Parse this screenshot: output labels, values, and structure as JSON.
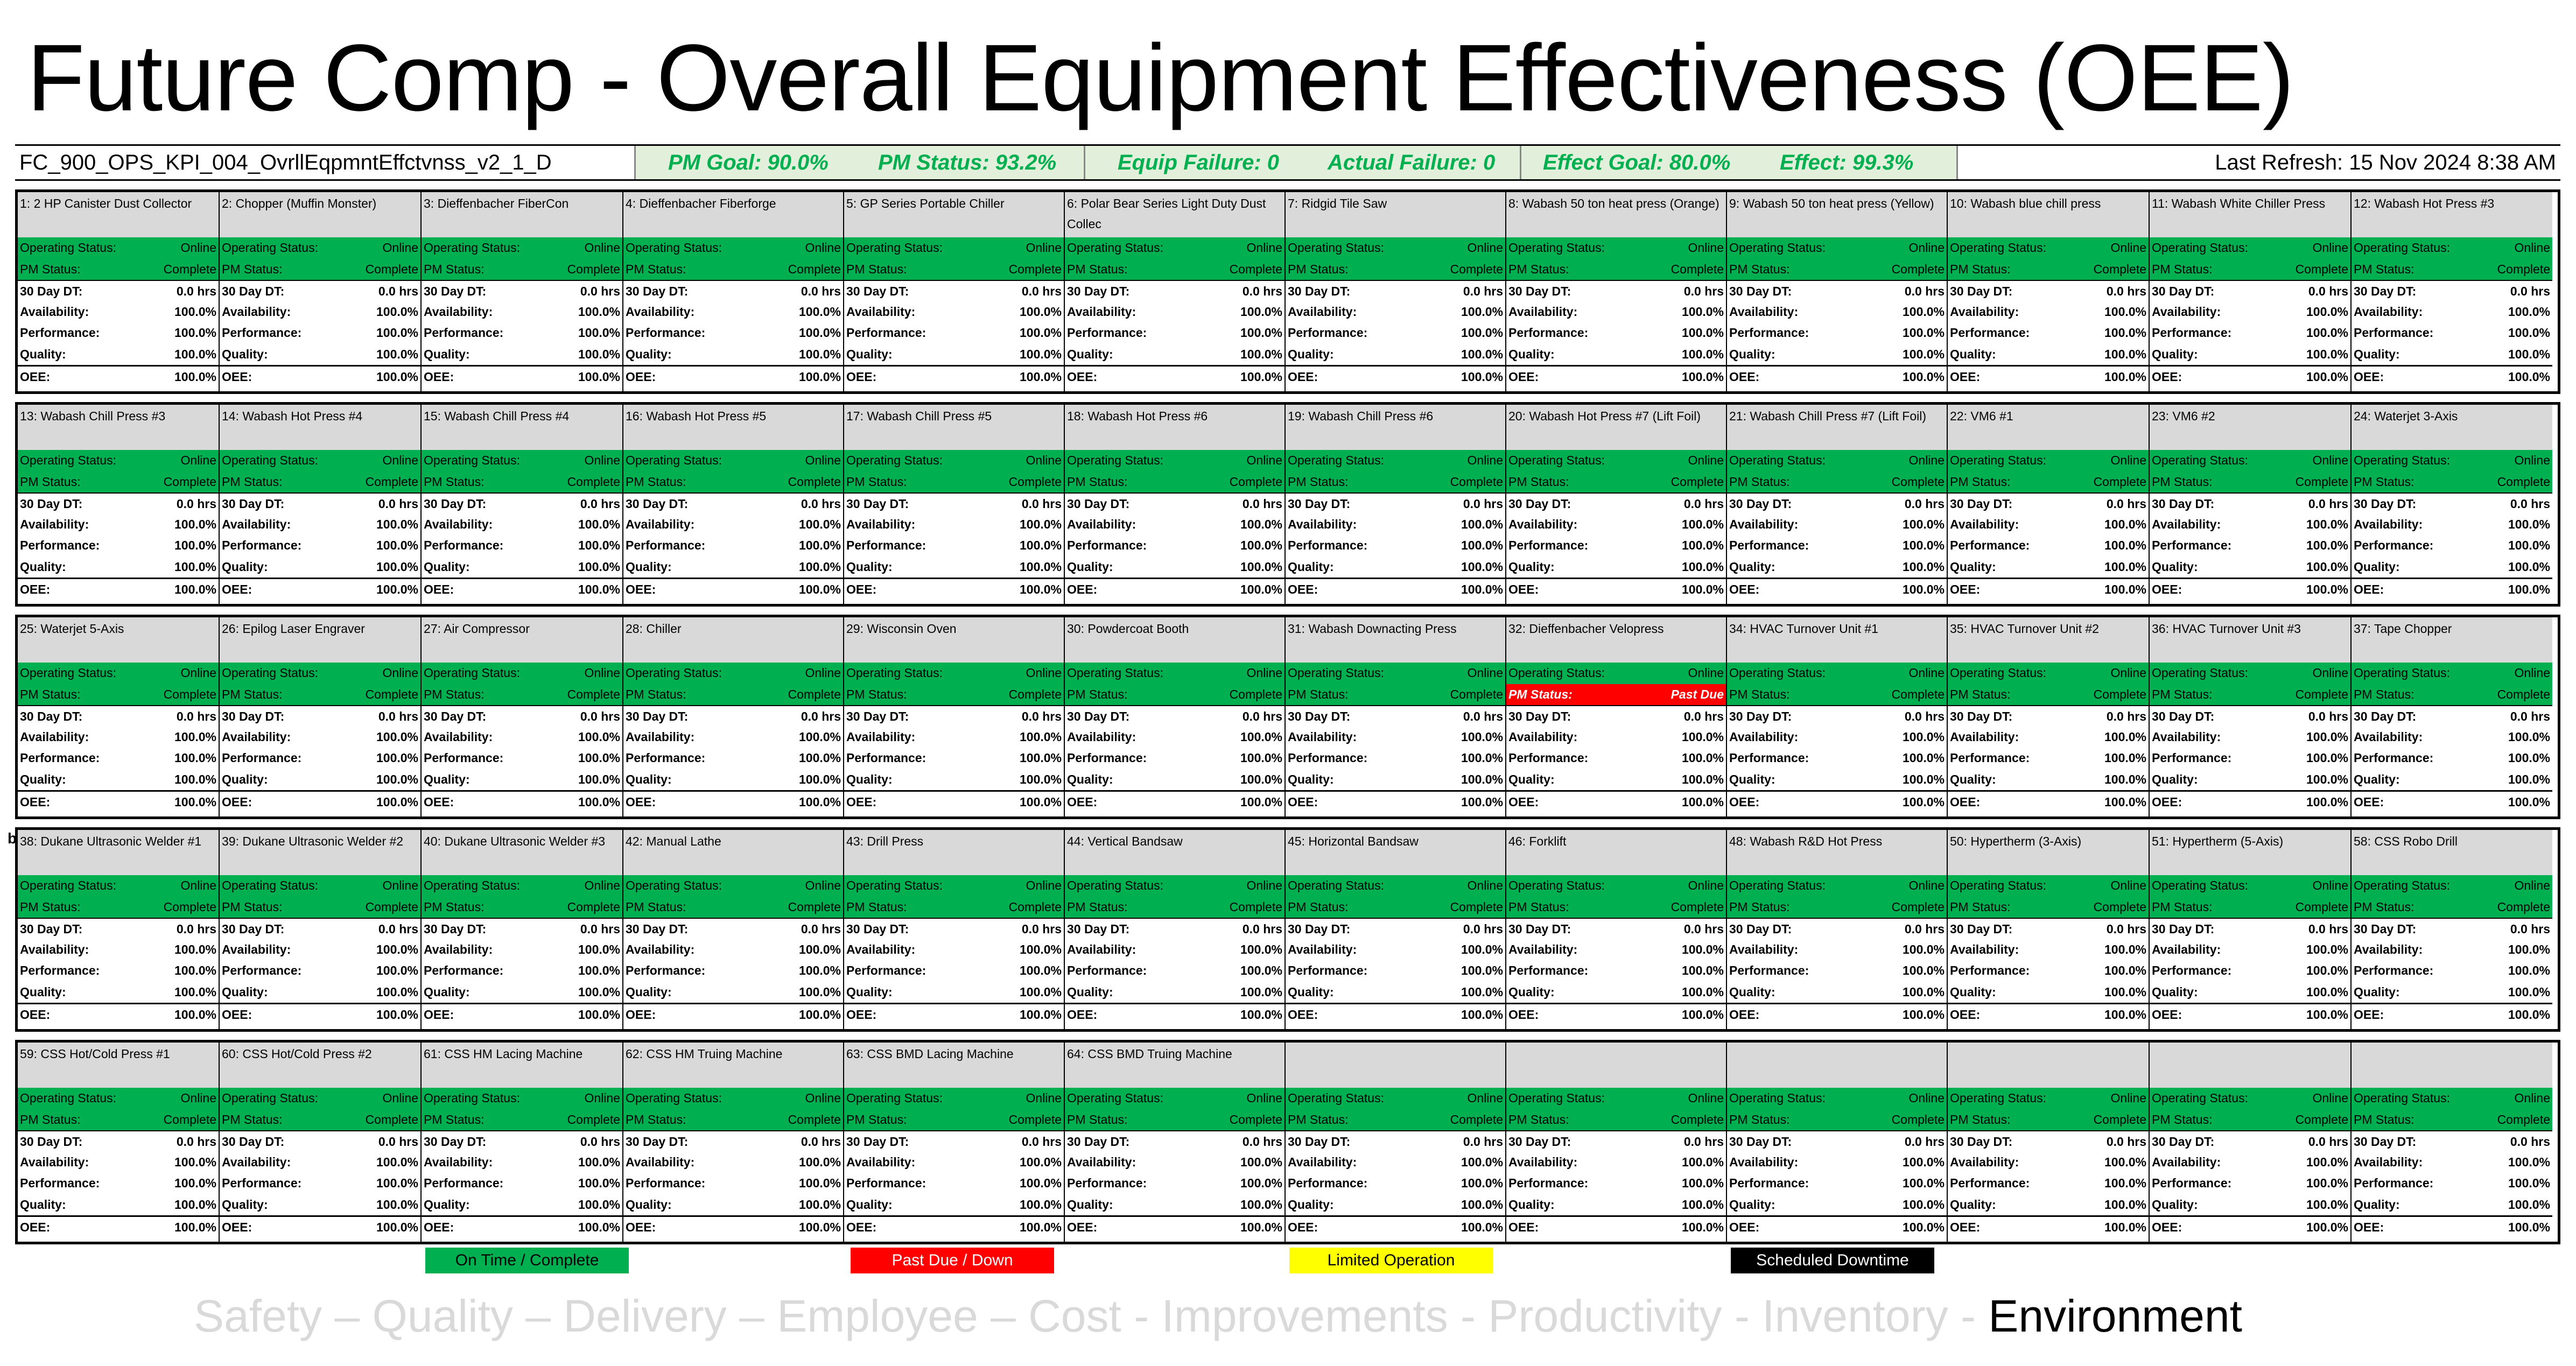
{
  "title": "Future Comp - Overall Equipment Effectiveness (OEE)",
  "header": {
    "report_id": "FC_900_OPS_KPI_004_OvrllEqpmntEffctvnss_v2_1_D",
    "pm_goal": "PM Goal: 90.0%",
    "pm_status": "PM Status: 93.2%",
    "equip_failure": "Equip Failure: 0",
    "actual_failure": "Actual Failure: 0",
    "effect_goal": "Effect Goal: 80.0%",
    "effect": "Effect: 99.3%",
    "last_refresh": "Last Refresh: 15 Nov 2024 8:38 AM"
  },
  "labels": {
    "operating_status": "Operating Status:",
    "pm_status": "PM Status:",
    "dt": "30 Day DT:",
    "availability": "Availability:",
    "performance": "Performance:",
    "quality": "Quality:",
    "oee": "OEE:"
  },
  "rows": [
    [
      {
        "name": "1: 2 HP Canister Dust Collector",
        "op": "Online",
        "pm": "Complete",
        "dt": "0.0 hrs",
        "avail": "100.0%",
        "perf": "100.0%",
        "qual": "100.0%",
        "oee": "100.0%"
      },
      {
        "name": "2: Chopper (Muffin Monster)",
        "op": "Online",
        "pm": "Complete",
        "dt": "0.0 hrs",
        "avail": "100.0%",
        "perf": "100.0%",
        "qual": "100.0%",
        "oee": "100.0%"
      },
      {
        "name": "3: Dieffenbacher FiberCon",
        "op": "Online",
        "pm": "Complete",
        "dt": "0.0 hrs",
        "avail": "100.0%",
        "perf": "100.0%",
        "qual": "100.0%",
        "oee": "100.0%"
      },
      {
        "name": "4: Dieffenbacher Fiberforge",
        "op": "Online",
        "pm": "Complete",
        "dt": "0.0 hrs",
        "avail": "100.0%",
        "perf": "100.0%",
        "qual": "100.0%",
        "oee": "100.0%"
      },
      {
        "name": "5: GP Series Portable Chiller",
        "op": "Online",
        "pm": "Complete",
        "dt": "0.0 hrs",
        "avail": "100.0%",
        "perf": "100.0%",
        "qual": "100.0%",
        "oee": "100.0%"
      },
      {
        "name": "6: Polar Bear Series Light Duty Dust Collec",
        "op": "Online",
        "pm": "Complete",
        "dt": "0.0 hrs",
        "avail": "100.0%",
        "perf": "100.0%",
        "qual": "100.0%",
        "oee": "100.0%"
      },
      {
        "name": "7: Ridgid Tile Saw",
        "op": "Online",
        "pm": "Complete",
        "dt": "0.0 hrs",
        "avail": "100.0%",
        "perf": "100.0%",
        "qual": "100.0%",
        "oee": "100.0%"
      },
      {
        "name": "8: Wabash 50 ton heat press (Orange)",
        "op": "Online",
        "pm": "Complete",
        "dt": "0.0 hrs",
        "avail": "100.0%",
        "perf": "100.0%",
        "qual": "100.0%",
        "oee": "100.0%"
      },
      {
        "name": "9: Wabash 50 ton heat press (Yellow)",
        "op": "Online",
        "pm": "Complete",
        "dt": "0.0 hrs",
        "avail": "100.0%",
        "perf": "100.0%",
        "qual": "100.0%",
        "oee": "100.0%"
      },
      {
        "name": "10: Wabash blue chill press",
        "op": "Online",
        "pm": "Complete",
        "dt": "0.0 hrs",
        "avail": "100.0%",
        "perf": "100.0%",
        "qual": "100.0%",
        "oee": "100.0%"
      },
      {
        "name": "11: Wabash White Chiller Press",
        "op": "Online",
        "pm": "Complete",
        "dt": "0.0 hrs",
        "avail": "100.0%",
        "perf": "100.0%",
        "qual": "100.0%",
        "oee": "100.0%"
      },
      {
        "name": "12: Wabash Hot Press #3",
        "op": "Online",
        "pm": "Complete",
        "dt": "0.0 hrs",
        "avail": "100.0%",
        "perf": "100.0%",
        "qual": "100.0%",
        "oee": "100.0%"
      }
    ],
    [
      {
        "name": "13: Wabash Chill Press #3",
        "op": "Online",
        "pm": "Complete",
        "dt": "0.0 hrs",
        "avail": "100.0%",
        "perf": "100.0%",
        "qual": "100.0%",
        "oee": "100.0%"
      },
      {
        "name": "14: Wabash Hot Press #4",
        "op": "Online",
        "pm": "Complete",
        "dt": "0.0 hrs",
        "avail": "100.0%",
        "perf": "100.0%",
        "qual": "100.0%",
        "oee": "100.0%"
      },
      {
        "name": "15: Wabash Chill Press #4",
        "op": "Online",
        "pm": "Complete",
        "dt": "0.0 hrs",
        "avail": "100.0%",
        "perf": "100.0%",
        "qual": "100.0%",
        "oee": "100.0%"
      },
      {
        "name": "16: Wabash Hot Press #5",
        "op": "Online",
        "pm": "Complete",
        "dt": "0.0 hrs",
        "avail": "100.0%",
        "perf": "100.0%",
        "qual": "100.0%",
        "oee": "100.0%"
      },
      {
        "name": "17: Wabash Chill Press #5",
        "op": "Online",
        "pm": "Complete",
        "dt": "0.0 hrs",
        "avail": "100.0%",
        "perf": "100.0%",
        "qual": "100.0%",
        "oee": "100.0%"
      },
      {
        "name": "18: Wabash Hot Press #6",
        "op": "Online",
        "pm": "Complete",
        "dt": "0.0 hrs",
        "avail": "100.0%",
        "perf": "100.0%",
        "qual": "100.0%",
        "oee": "100.0%"
      },
      {
        "name": "19: Wabash Chill Press #6",
        "op": "Online",
        "pm": "Complete",
        "dt": "0.0 hrs",
        "avail": "100.0%",
        "perf": "100.0%",
        "qual": "100.0%",
        "oee": "100.0%"
      },
      {
        "name": "20: Wabash Hot Press #7 (Lift Foil)",
        "op": "Online",
        "pm": "Complete",
        "dt": "0.0 hrs",
        "avail": "100.0%",
        "perf": "100.0%",
        "qual": "100.0%",
        "oee": "100.0%"
      },
      {
        "name": "21: Wabash Chill Press #7 (Lift Foil)",
        "op": "Online",
        "pm": "Complete",
        "dt": "0.0 hrs",
        "avail": "100.0%",
        "perf": "100.0%",
        "qual": "100.0%",
        "oee": "100.0%"
      },
      {
        "name": "22: VM6 #1",
        "op": "Online",
        "pm": "Complete",
        "dt": "0.0 hrs",
        "avail": "100.0%",
        "perf": "100.0%",
        "qual": "100.0%",
        "oee": "100.0%"
      },
      {
        "name": "23: VM6 #2",
        "op": "Online",
        "pm": "Complete",
        "dt": "0.0 hrs",
        "avail": "100.0%",
        "perf": "100.0%",
        "qual": "100.0%",
        "oee": "100.0%"
      },
      {
        "name": "24: Waterjet 3-Axis",
        "op": "Online",
        "pm": "Complete",
        "dt": "0.0 hrs",
        "avail": "100.0%",
        "perf": "100.0%",
        "qual": "100.0%",
        "oee": "100.0%"
      }
    ],
    [
      {
        "name": "25: Waterjet 5-Axis",
        "op": "Online",
        "pm": "Complete",
        "dt": "0.0 hrs",
        "avail": "100.0%",
        "perf": "100.0%",
        "qual": "100.0%",
        "oee": "100.0%"
      },
      {
        "name": "26: Epilog Laser Engraver",
        "op": "Online",
        "pm": "Complete",
        "dt": "0.0 hrs",
        "avail": "100.0%",
        "perf": "100.0%",
        "qual": "100.0%",
        "oee": "100.0%"
      },
      {
        "name": "27: Air Compressor",
        "op": "Online",
        "pm": "Complete",
        "dt": "0.0 hrs",
        "avail": "100.0%",
        "perf": "100.0%",
        "qual": "100.0%",
        "oee": "100.0%"
      },
      {
        "name": "28: Chiller",
        "op": "Online",
        "pm": "Complete",
        "dt": "0.0 hrs",
        "avail": "100.0%",
        "perf": "100.0%",
        "qual": "100.0%",
        "oee": "100.0%"
      },
      {
        "name": "29: Wisconsin Oven",
        "op": "Online",
        "pm": "Complete",
        "dt": "0.0 hrs",
        "avail": "100.0%",
        "perf": "100.0%",
        "qual": "100.0%",
        "oee": "100.0%"
      },
      {
        "name": "30: Powdercoat Booth",
        "op": "Online",
        "pm": "Complete",
        "dt": "0.0 hrs",
        "avail": "100.0%",
        "perf": "100.0%",
        "qual": "100.0%",
        "oee": "100.0%"
      },
      {
        "name": "31: Wabash Downacting Press",
        "op": "Online",
        "pm": "Complete",
        "dt": "0.0 hrs",
        "avail": "100.0%",
        "perf": "100.0%",
        "qual": "100.0%",
        "oee": "100.0%"
      },
      {
        "name": "32: Dieffenbacher Velopress",
        "op": "Online",
        "pm": "Past Due",
        "dt": "0.0 hrs",
        "avail": "100.0%",
        "perf": "100.0%",
        "qual": "100.0%",
        "oee": "100.0%"
      },
      {
        "name": "34: HVAC Turnover Unit #1",
        "op": "Online",
        "pm": "Complete",
        "dt": "0.0 hrs",
        "avail": "100.0%",
        "perf": "100.0%",
        "qual": "100.0%",
        "oee": "100.0%"
      },
      {
        "name": "35: HVAC Turnover Unit #2",
        "op": "Online",
        "pm": "Complete",
        "dt": "0.0 hrs",
        "avail": "100.0%",
        "perf": "100.0%",
        "qual": "100.0%",
        "oee": "100.0%"
      },
      {
        "name": "36: HVAC Turnover Unit #3",
        "op": "Online",
        "pm": "Complete",
        "dt": "0.0 hrs",
        "avail": "100.0%",
        "perf": "100.0%",
        "qual": "100.0%",
        "oee": "100.0%"
      },
      {
        "name": "37: Tape Chopper",
        "op": "Online",
        "pm": "Complete",
        "dt": "0.0 hrs",
        "avail": "100.0%",
        "perf": "100.0%",
        "qual": "100.0%",
        "oee": "100.0%"
      }
    ],
    [
      {
        "name": "38: Dukane Ultrasonic Welder #1",
        "op": "Online",
        "pm": "Complete",
        "dt": "0.0 hrs",
        "avail": "100.0%",
        "perf": "100.0%",
        "qual": "100.0%",
        "oee": "100.0%"
      },
      {
        "name": "39: Dukane Ultrasonic Welder #2",
        "op": "Online",
        "pm": "Complete",
        "dt": "0.0 hrs",
        "avail": "100.0%",
        "perf": "100.0%",
        "qual": "100.0%",
        "oee": "100.0%"
      },
      {
        "name": "40: Dukane Ultrasonic Welder #3",
        "op": "Online",
        "pm": "Complete",
        "dt": "0.0 hrs",
        "avail": "100.0%",
        "perf": "100.0%",
        "qual": "100.0%",
        "oee": "100.0%"
      },
      {
        "name": "42: Manual Lathe",
        "op": "Online",
        "pm": "Complete",
        "dt": "0.0 hrs",
        "avail": "100.0%",
        "perf": "100.0%",
        "qual": "100.0%",
        "oee": "100.0%"
      },
      {
        "name": "43: Drill Press",
        "op": "Online",
        "pm": "Complete",
        "dt": "0.0 hrs",
        "avail": "100.0%",
        "perf": "100.0%",
        "qual": "100.0%",
        "oee": "100.0%"
      },
      {
        "name": "44: Vertical Bandsaw",
        "op": "Online",
        "pm": "Complete",
        "dt": "0.0 hrs",
        "avail": "100.0%",
        "perf": "100.0%",
        "qual": "100.0%",
        "oee": "100.0%"
      },
      {
        "name": "45: Horizontal Bandsaw",
        "op": "Online",
        "pm": "Complete",
        "dt": "0.0 hrs",
        "avail": "100.0%",
        "perf": "100.0%",
        "qual": "100.0%",
        "oee": "100.0%"
      },
      {
        "name": "46: Forklift",
        "op": "Online",
        "pm": "Complete",
        "dt": "0.0 hrs",
        "avail": "100.0%",
        "perf": "100.0%",
        "qual": "100.0%",
        "oee": "100.0%"
      },
      {
        "name": "48: Wabash R&D Hot Press",
        "op": "Online",
        "pm": "Complete",
        "dt": "0.0 hrs",
        "avail": "100.0%",
        "perf": "100.0%",
        "qual": "100.0%",
        "oee": "100.0%"
      },
      {
        "name": "50: Hypertherm (3-Axis)",
        "op": "Online",
        "pm": "Complete",
        "dt": "0.0 hrs",
        "avail": "100.0%",
        "perf": "100.0%",
        "qual": "100.0%",
        "oee": "100.0%"
      },
      {
        "name": "51: Hypertherm (5-Axis)",
        "op": "Online",
        "pm": "Complete",
        "dt": "0.0 hrs",
        "avail": "100.0%",
        "perf": "100.0%",
        "qual": "100.0%",
        "oee": "100.0%"
      },
      {
        "name": "58: CSS Robo Drill",
        "op": "Online",
        "pm": "Complete",
        "dt": "0.0 hrs",
        "avail": "100.0%",
        "perf": "100.0%",
        "qual": "100.0%",
        "oee": "100.0%"
      }
    ],
    [
      {
        "name": "59: CSS Hot/Cold Press #1",
        "op": "Online",
        "pm": "Complete",
        "dt": "0.0 hrs",
        "avail": "100.0%",
        "perf": "100.0%",
        "qual": "100.0%",
        "oee": "100.0%"
      },
      {
        "name": "60: CSS Hot/Cold Press #2",
        "op": "Online",
        "pm": "Complete",
        "dt": "0.0 hrs",
        "avail": "100.0%",
        "perf": "100.0%",
        "qual": "100.0%",
        "oee": "100.0%"
      },
      {
        "name": "61: CSS HM Lacing Machine",
        "op": "Online",
        "pm": "Complete",
        "dt": "0.0 hrs",
        "avail": "100.0%",
        "perf": "100.0%",
        "qual": "100.0%",
        "oee": "100.0%"
      },
      {
        "name": "62: CSS HM Truing Machine",
        "op": "Online",
        "pm": "Complete",
        "dt": "0.0 hrs",
        "avail": "100.0%",
        "perf": "100.0%",
        "qual": "100.0%",
        "oee": "100.0%"
      },
      {
        "name": "63: CSS BMD Lacing Machine",
        "op": "Online",
        "pm": "Complete",
        "dt": "0.0 hrs",
        "avail": "100.0%",
        "perf": "100.0%",
        "qual": "100.0%",
        "oee": "100.0%"
      },
      {
        "name": "64: CSS BMD Truing Machine",
        "op": "Online",
        "pm": "Complete",
        "dt": "0.0 hrs",
        "avail": "100.0%",
        "perf": "100.0%",
        "qual": "100.0%",
        "oee": "100.0%"
      },
      {
        "name": "",
        "op": "Online",
        "pm": "Complete",
        "dt": "0.0 hrs",
        "avail": "100.0%",
        "perf": "100.0%",
        "qual": "100.0%",
        "oee": "100.0%"
      },
      {
        "name": "",
        "op": "Online",
        "pm": "Complete",
        "dt": "0.0 hrs",
        "avail": "100.0%",
        "perf": "100.0%",
        "qual": "100.0%",
        "oee": "100.0%"
      },
      {
        "name": "",
        "op": "Online",
        "pm": "Complete",
        "dt": "0.0 hrs",
        "avail": "100.0%",
        "perf": "100.0%",
        "qual": "100.0%",
        "oee": "100.0%"
      },
      {
        "name": "",
        "op": "Online",
        "pm": "Complete",
        "dt": "0.0 hrs",
        "avail": "100.0%",
        "perf": "100.0%",
        "qual": "100.0%",
        "oee": "100.0%"
      },
      {
        "name": "",
        "op": "Online",
        "pm": "Complete",
        "dt": "0.0 hrs",
        "avail": "100.0%",
        "perf": "100.0%",
        "qual": "100.0%",
        "oee": "100.0%"
      },
      {
        "name": "",
        "op": "Online",
        "pm": "Complete",
        "dt": "0.0 hrs",
        "avail": "100.0%",
        "perf": "100.0%",
        "qual": "100.0%",
        "oee": "100.0%"
      }
    ]
  ],
  "row_marker": "b",
  "legend": [
    {
      "label": "On Time / Complete",
      "color": "#00b050",
      "text_color": "#000000"
    },
    {
      "label": "Past Due / Down",
      "color": "#ff0000",
      "text_color": "#ffffff"
    },
    {
      "label": "Limited Operation",
      "color": "#ffff00",
      "text_color": "#000000"
    },
    {
      "label": "Scheduled Downtime",
      "color": "#000000",
      "text_color": "#ffffff"
    }
  ],
  "footer": {
    "items": [
      "Safety",
      "Quality",
      "Delivery",
      "Employee",
      "Cost",
      "Improvements",
      "Productivity",
      "Inventory"
    ],
    "separators": [
      " – ",
      " – ",
      " – ",
      " – ",
      " - ",
      " - ",
      " - ",
      " - "
    ],
    "highlight": "Environment"
  },
  "colors": {
    "online": "#00b050",
    "past_due": "#ff0000",
    "header_grey": "#d9d9d9",
    "goal_green_text": "#00b050",
    "goal_bg": "#e2efda"
  }
}
